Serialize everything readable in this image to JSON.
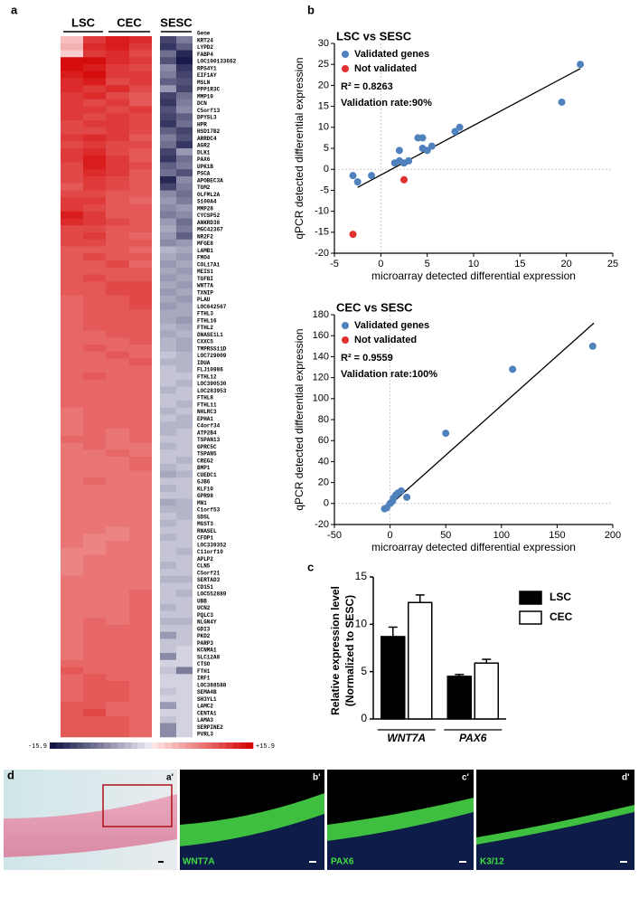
{
  "panel_labels": [
    "a",
    "b",
    "c",
    "d"
  ],
  "chart_data": [
    {
      "type": "heatmap",
      "column_groups": [
        "LSC",
        "CEC",
        "SESC"
      ],
      "row_header": "Gene",
      "genes": [
        "KRT24",
        "LYPD2",
        "FABP4",
        "LOC100133662",
        "RPS4Y1",
        "EIF1AY",
        "MSLN",
        "PPP1R3C",
        "MMP10",
        "DCN",
        "C5orf13",
        "DPYSL3",
        "HPR",
        "HSD17B2",
        "ARRDC4",
        "AGR2",
        "DLK1",
        "PAX6",
        "UPK1B",
        "PSCA",
        "APOBEC3A",
        "TGM2",
        "OLFML2A",
        "S100A4",
        "MMP28",
        "CYCSP52",
        "ANKRD38",
        "MGC42367",
        "NR2F2",
        "MFGE8",
        "LAMB1",
        "FMO4",
        "COL17A1",
        "MEIS1",
        "TGFBI",
        "WNT7A",
        "TXNIP",
        "PLAU",
        "LOC642567",
        "FTHL3",
        "FTHL16",
        "FTHL2",
        "DNASE1L1",
        "CXXC5",
        "TMPRSS11D",
        "LOC729009",
        "IDUA",
        "FLJ10986",
        "FTHL12",
        "LOC390530",
        "LOC283953",
        "FTHL8",
        "FTHL11",
        "NHLRC3",
        "EPHA1",
        "C4orf34",
        "ATP2B4",
        "TSPAN13",
        "GPRC5C",
        "TSPAN5",
        "CREG2",
        "BMP1",
        "CUEDC1",
        "GJB6",
        "KLF10",
        "GPR98",
        "MN1",
        "C1orf53",
        "SDSL",
        "MGST3",
        "RNASEL",
        "CFDP1",
        "LOC339352",
        "C11orf10",
        "APLP2",
        "CLN5",
        "C5orf21",
        "SERTAD3",
        "CD151",
        "LOC552889",
        "UBB",
        "UCN2",
        "PQLC3",
        "NLGN4Y",
        "GDI3",
        "PKD2",
        "PARP3",
        "KCNMA1",
        "SLC12A8",
        "CTSO",
        "FTH1",
        "IRF1",
        "LOC388588",
        "SEMA4B",
        "SH3YL1",
        "LAMC2",
        "CENTA1",
        "LAMA3",
        "SERPINE2",
        "PVRL3"
      ],
      "values": [
        [
          3,
          12,
          14,
          13,
          -12,
          -8
        ],
        [
          4,
          13,
          14,
          12,
          -13,
          -10
        ],
        [
          2,
          12,
          13,
          11,
          -9,
          -14
        ],
        [
          15,
          15,
          13,
          12,
          -11,
          -15
        ],
        [
          15,
          14,
          12,
          11,
          -7,
          -13
        ],
        [
          14,
          15,
          12,
          12,
          -8,
          -12
        ],
        [
          13,
          14,
          11,
          12,
          -10,
          -11
        ],
        [
          13,
          12,
          13,
          11,
          -6,
          -12
        ],
        [
          12,
          13,
          11,
          10,
          -12,
          -9
        ],
        [
          12,
          11,
          12,
          10,
          -13,
          -8
        ],
        [
          12,
          12,
          11,
          12,
          -11,
          -7
        ],
        [
          12,
          11,
          12,
          11,
          -12,
          -10
        ],
        [
          11,
          12,
          12,
          11,
          -13,
          -9
        ],
        [
          11,
          11,
          12,
          11,
          -10,
          -12
        ],
        [
          12,
          13,
          12,
          10,
          -8,
          -11
        ],
        [
          11,
          12,
          11,
          11,
          -9,
          -13
        ],
        [
          12,
          13,
          11,
          10,
          -12,
          -6
        ],
        [
          12,
          14,
          12,
          10,
          -13,
          -9
        ],
        [
          11,
          14,
          12,
          11,
          -10,
          -8
        ],
        [
          11,
          13,
          12,
          10,
          -9,
          -11
        ],
        [
          11,
          12,
          11,
          10,
          -14,
          -7
        ],
        [
          10,
          12,
          11,
          10,
          -12,
          -8
        ],
        [
          11,
          11,
          10,
          10,
          -7,
          -9
        ],
        [
          12,
          12,
          10,
          9,
          -6,
          -8
        ],
        [
          12,
          11,
          10,
          10,
          -7,
          -6
        ],
        [
          14,
          12,
          10,
          10,
          -8,
          -7
        ],
        [
          13,
          12,
          11,
          10,
          -6,
          -9
        ],
        [
          11,
          11,
          10,
          10,
          -5,
          -8
        ],
        [
          11,
          12,
          10,
          9,
          -6,
          -10
        ],
        [
          11,
          11,
          10,
          10,
          -7,
          -6
        ],
        [
          10,
          10,
          10,
          9,
          -4,
          -5
        ],
        [
          10,
          11,
          10,
          10,
          -5,
          -6
        ],
        [
          10,
          10,
          11,
          9,
          -6,
          -5
        ],
        [
          10,
          10,
          10,
          10,
          -5,
          -6
        ],
        [
          10,
          11,
          10,
          10,
          -6,
          -5
        ],
        [
          10,
          10,
          11,
          11,
          -5,
          -6
        ],
        [
          10,
          10,
          11,
          11,
          -6,
          -5
        ],
        [
          9,
          10,
          10,
          11,
          -5,
          -6
        ],
        [
          9,
          10,
          10,
          11,
          -6,
          -5
        ],
        [
          9,
          10,
          10,
          10,
          -5,
          -5
        ],
        [
          9,
          10,
          10,
          10,
          -5,
          -6
        ],
        [
          9,
          10,
          10,
          10,
          -4,
          -5
        ],
        [
          9,
          9,
          10,
          10,
          -5,
          -4
        ],
        [
          9,
          9,
          9,
          10,
          -4,
          -5
        ],
        [
          9,
          10,
          9,
          9,
          -4,
          -5
        ],
        [
          9,
          9,
          10,
          9,
          -3,
          -4
        ],
        [
          9,
          9,
          9,
          10,
          -4,
          -4
        ],
        [
          9,
          9,
          9,
          9,
          -3,
          -4
        ],
        [
          9,
          10,
          9,
          9,
          -3,
          -3
        ],
        [
          9,
          9,
          9,
          9,
          -3,
          -4
        ],
        [
          9,
          9,
          9,
          9,
          -4,
          -3
        ],
        [
          9,
          9,
          9,
          9,
          -3,
          -3
        ],
        [
          9,
          9,
          9,
          9,
          -3,
          -4
        ],
        [
          8,
          9,
          9,
          9,
          -4,
          -3
        ],
        [
          8,
          9,
          9,
          9,
          -3,
          -4
        ],
        [
          8,
          9,
          9,
          9,
          -4,
          -4
        ],
        [
          8,
          9,
          8,
          9,
          -4,
          -3
        ],
        [
          9,
          9,
          8,
          9,
          -3,
          -3
        ],
        [
          8,
          9,
          8,
          8,
          -4,
          -3
        ],
        [
          8,
          8,
          9,
          8,
          -3,
          -3
        ],
        [
          8,
          8,
          8,
          9,
          -3,
          -4
        ],
        [
          8,
          8,
          8,
          9,
          -4,
          -3
        ],
        [
          8,
          8,
          8,
          8,
          -5,
          -4
        ],
        [
          8,
          9,
          8,
          8,
          -3,
          -3
        ],
        [
          8,
          8,
          8,
          8,
          -4,
          -3
        ],
        [
          8,
          8,
          8,
          8,
          -3,
          -3
        ],
        [
          8,
          8,
          8,
          8,
          -5,
          -4
        ],
        [
          8,
          8,
          8,
          8,
          -4,
          -4
        ],
        [
          8,
          8,
          8,
          8,
          -3,
          -4
        ],
        [
          8,
          8,
          8,
          8,
          -4,
          -3
        ],
        [
          8,
          8,
          7,
          8,
          -3,
          -3
        ],
        [
          8,
          7,
          7,
          8,
          -4,
          -3
        ],
        [
          8,
          7,
          8,
          8,
          -3,
          -3
        ],
        [
          7,
          7,
          8,
          8,
          -3,
          -4
        ],
        [
          7,
          8,
          8,
          8,
          -3,
          -3
        ],
        [
          7,
          8,
          8,
          8,
          -4,
          -3
        ],
        [
          7,
          8,
          8,
          8,
          -3,
          -3
        ],
        [
          8,
          8,
          8,
          8,
          -4,
          -4
        ],
        [
          8,
          8,
          8,
          8,
          -3,
          -3
        ],
        [
          8,
          8,
          8,
          9,
          -3,
          -4
        ],
        [
          8,
          8,
          8,
          9,
          -3,
          -3
        ],
        [
          8,
          8,
          8,
          9,
          -4,
          -3
        ],
        [
          8,
          8,
          8,
          9,
          -3,
          -3
        ],
        [
          8,
          9,
          8,
          9,
          -4,
          -4
        ],
        [
          8,
          9,
          9,
          9,
          -3,
          -3
        ],
        [
          8,
          9,
          9,
          9,
          -6,
          -3
        ],
        [
          8,
          9,
          9,
          9,
          -3,
          -3
        ],
        [
          8,
          9,
          9,
          9,
          -3,
          -2
        ],
        [
          8,
          9,
          9,
          9,
          -7,
          -2
        ],
        [
          9,
          9,
          9,
          9,
          -2,
          -2
        ],
        [
          10,
          9,
          9,
          9,
          -3,
          -8
        ],
        [
          9,
          10,
          9,
          9,
          -2,
          -2
        ],
        [
          9,
          10,
          10,
          9,
          -2,
          -2
        ],
        [
          9,
          10,
          10,
          9,
          -3,
          -2
        ],
        [
          9,
          10,
          10,
          9,
          -2,
          -2
        ],
        [
          10,
          10,
          9,
          9,
          -6,
          -2
        ],
        [
          10,
          11,
          9,
          9,
          -2,
          -2
        ],
        [
          10,
          10,
          10,
          9,
          -3,
          -2
        ],
        [
          10,
          10,
          10,
          9,
          -7,
          -2
        ],
        [
          10,
          10,
          10,
          9,
          -7,
          -2
        ]
      ],
      "colorbar_ticks": [
        -15.9,
        {
          "value": 15.9,
          "label": "+15.9"
        }
      ]
    },
    {
      "type": "scatter",
      "title": "LSC vs SESC",
      "xlabel": "microarray detected differential expression",
      "ylabel": "qPCR detected differential expression",
      "xlim": [
        -5,
        25
      ],
      "xticks": [
        -5,
        0,
        5,
        10,
        15,
        20,
        25
      ],
      "ylim": [
        -20,
        30
      ],
      "yticks": [
        -20,
        -15,
        -10,
        -5,
        0,
        5,
        10,
        15,
        20,
        25,
        30
      ],
      "series": [
        {
          "name": "Validated genes",
          "color": "#4f81bd",
          "x": [
            -3,
            -2.5,
            -1,
            1.5,
            2,
            2,
            2.5,
            3,
            4,
            4.5,
            4.5,
            5,
            5.5,
            8,
            8.5,
            19.5,
            21.5
          ],
          "y": [
            -1.5,
            -3,
            -1.5,
            1.5,
            2,
            4.5,
            1.5,
            2,
            7.5,
            7.5,
            5,
            4.5,
            5.5,
            9,
            10,
            16,
            25
          ]
        },
        {
          "name": "Not validated",
          "color": "#e03030",
          "x": [
            -3,
            2.5
          ],
          "y": [
            -15.5,
            -2.5
          ]
        }
      ],
      "annotations": [
        "R² = 0.8263",
        "Validation rate:90%"
      ],
      "fit_line": {
        "x": [
          -2.5,
          21.5
        ],
        "y": [
          -4.3,
          24
        ]
      },
      "zero_lines": true
    },
    {
      "type": "scatter",
      "title": "CEC vs SESC",
      "xlabel": "microarray detected differential expression",
      "ylabel": "qPCR detected differential expression",
      "xlim": [
        -50,
        200
      ],
      "xticks": [
        -50,
        0,
        50,
        100,
        150,
        200
      ],
      "ylim": [
        -20,
        180
      ],
      "yticks": [
        -20,
        0,
        20,
        40,
        60,
        80,
        100,
        120,
        140,
        160,
        180
      ],
      "series": [
        {
          "name": "Validated genes",
          "color": "#4f81bd",
          "x": [
            -5,
            -3,
            0,
            2,
            3,
            5,
            7,
            10,
            15,
            50,
            110,
            182
          ],
          "y": [
            -5,
            -4,
            0,
            2,
            5,
            8,
            10,
            12,
            6,
            67,
            128,
            150
          ]
        },
        {
          "name": "Not validated",
          "color": "#e03030",
          "x": [],
          "y": []
        }
      ],
      "annotations": [
        "R² = 0.9559",
        "Validation rate:100%"
      ],
      "fit_line": {
        "x": [
          -5,
          183
        ],
        "y": [
          -6,
          172
        ]
      },
      "zero_lines": true
    },
    {
      "type": "bar",
      "ylabel": [
        "Relative expression level",
        "(Normalized to SESC)"
      ],
      "categories": [
        "WNT7A",
        "PAX6"
      ],
      "ylim": [
        0,
        15
      ],
      "yticks": [
        0,
        5,
        10,
        15
      ],
      "series": [
        {
          "name": "LSC",
          "color": "#000000",
          "values": [
            8.7,
            4.5
          ],
          "errors": [
            1.0,
            0.2
          ]
        },
        {
          "name": "CEC",
          "color": "#ffffff",
          "values": [
            12.3,
            5.9
          ],
          "errors": [
            0.8,
            0.4
          ]
        }
      ]
    }
  ],
  "images": [
    {
      "label": "a'"
    },
    {
      "label": "b'",
      "stain": "WNT7A"
    },
    {
      "label": "c'",
      "stain": "PAX6"
    },
    {
      "label": "d'",
      "stain": "K3/12"
    }
  ]
}
